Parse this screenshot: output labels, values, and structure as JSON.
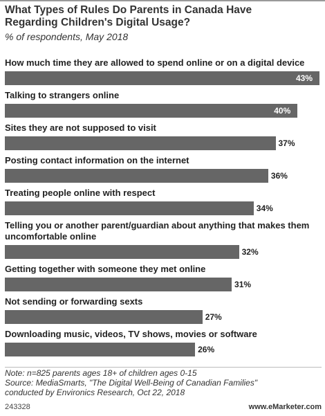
{
  "chart_data": {
    "type": "bar",
    "orientation": "horizontal",
    "title": "What Types of Rules Do Parents in Canada Have Regarding Children's Digital Usage?",
    "subtitle": "% of respondents, May 2018",
    "categories": [
      "How much time they are allowed to spend online or on a digital device",
      "Talking to strangers online",
      "Sites they are not supposed to visit",
      "Posting contact information on the internet",
      "Treating people online with respect",
      "Telling you or another parent/guardian about anything that makes them uncomfortable online",
      "Getting together with someone they met online",
      "Not sending or forwarding sexts",
      "Downloading music, videos, TV shows, movies or software"
    ],
    "values": [
      43,
      40,
      37,
      36,
      34,
      32,
      31,
      27,
      26
    ],
    "value_labels": [
      "43%",
      "40%",
      "37%",
      "36%",
      "34%",
      "32%",
      "31%",
      "27%",
      "26%"
    ],
    "color": "#666666",
    "notes": [
      "Note: n=825 parents ages 18+ of children ages 0-15",
      "Source: MediaSmarts, \"The Digital Well-Being of Canadian Families\"",
      "conducted by Environics Research, Oct 22, 2018"
    ],
    "chart_id": "243328",
    "source_brand": "www.eMarketer.com"
  }
}
